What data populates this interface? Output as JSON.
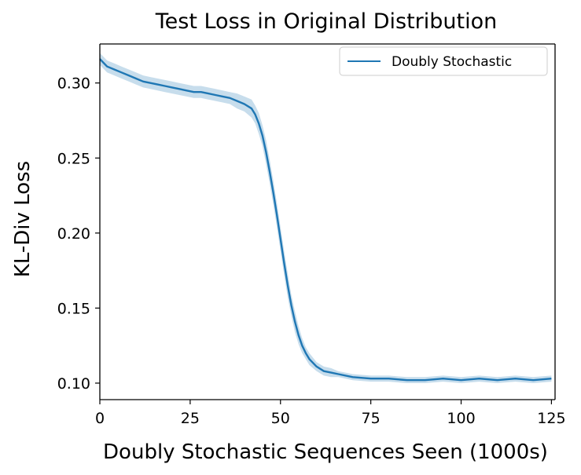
{
  "chart_data": {
    "type": "line",
    "title": "Test Loss in Original Distribution",
    "xlabel": "Doubly Stochastic Sequences Seen (1000s)",
    "ylabel": "KL-Div Loss",
    "xlim": [
      0,
      126
    ],
    "ylim": [
      0.089,
      0.326
    ],
    "xticks": [
      0,
      25,
      50,
      75,
      100,
      125
    ],
    "xtick_labels": [
      "0",
      "25",
      "50",
      "75",
      "100",
      "125"
    ],
    "yticks": [
      0.1,
      0.15,
      0.2,
      0.25,
      0.3
    ],
    "ytick_labels": [
      "0.10",
      "0.15",
      "0.20",
      "0.25",
      "0.30"
    ],
    "grid": false,
    "legend_position": "top-right",
    "series": [
      {
        "name": "Doubly Stochastic",
        "color": "#1f77b4",
        "band_color": "#1f77b4",
        "x": [
          0,
          2,
          4,
          6,
          8,
          10,
          12,
          14,
          16,
          18,
          20,
          22,
          24,
          26,
          28,
          30,
          32,
          34,
          36,
          38,
          40,
          42,
          43,
          44,
          45,
          46,
          47,
          48,
          49,
          50,
          51,
          52,
          53,
          54,
          55,
          56,
          57,
          58,
          60,
          62,
          64,
          66,
          70,
          75,
          80,
          85,
          90,
          95,
          100,
          105,
          110,
          115,
          120,
          125
        ],
        "y": [
          0.316,
          0.311,
          0.309,
          0.307,
          0.305,
          0.303,
          0.301,
          0.3,
          0.299,
          0.298,
          0.297,
          0.296,
          0.295,
          0.294,
          0.294,
          0.293,
          0.292,
          0.291,
          0.29,
          0.288,
          0.286,
          0.283,
          0.279,
          0.273,
          0.265,
          0.254,
          0.241,
          0.227,
          0.212,
          0.196,
          0.18,
          0.165,
          0.152,
          0.141,
          0.132,
          0.125,
          0.12,
          0.116,
          0.111,
          0.108,
          0.107,
          0.106,
          0.104,
          0.103,
          0.103,
          0.102,
          0.102,
          0.103,
          0.102,
          0.103,
          0.102,
          0.103,
          0.102,
          0.103
        ],
        "band": [
          0.004,
          0.004,
          0.004,
          0.004,
          0.004,
          0.004,
          0.004,
          0.004,
          0.004,
          0.004,
          0.004,
          0.004,
          0.004,
          0.004,
          0.004,
          0.004,
          0.004,
          0.004,
          0.004,
          0.005,
          0.005,
          0.006,
          0.006,
          0.007,
          0.007,
          0.008,
          0.008,
          0.008,
          0.008,
          0.008,
          0.008,
          0.008,
          0.007,
          0.007,
          0.006,
          0.005,
          0.004,
          0.004,
          0.003,
          0.003,
          0.003,
          0.002,
          0.002,
          0.002,
          0.002,
          0.002,
          0.002,
          0.002,
          0.002,
          0.002,
          0.002,
          0.002,
          0.002,
          0.002
        ]
      }
    ]
  }
}
